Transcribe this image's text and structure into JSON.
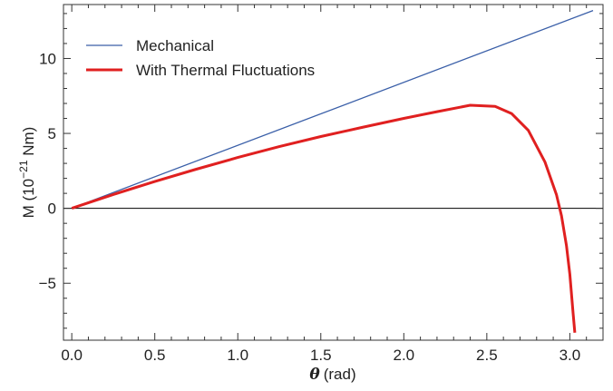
{
  "chart_data": {
    "type": "line",
    "title": "",
    "xlabel_symbol": "θ",
    "xlabel_unit": "(rad)",
    "ylabel_main": "M (10",
    "ylabel_exp": "−21",
    "ylabel_unit": " Nm)",
    "xlim": [
      -0.05,
      3.2
    ],
    "ylim": [
      -8.8,
      13.6
    ],
    "x_ticks": [
      0.0,
      0.5,
      1.0,
      1.5,
      2.0,
      2.5,
      3.0
    ],
    "x_tick_labels": [
      "0.0",
      "0.5",
      "1.0",
      "1.5",
      "2.0",
      "2.5",
      "3.0"
    ],
    "y_ticks": [
      -5,
      0,
      5,
      10
    ],
    "y_tick_labels": [
      "−5",
      "0",
      "5",
      "10"
    ],
    "grid": false,
    "zero_line": true,
    "legend_position": "top-left",
    "series": [
      {
        "name": "Mechanical",
        "color": "#3a5fa8",
        "x": [
          0.0,
          3.14
        ],
        "y": [
          0.0,
          13.2
        ]
      },
      {
        "name": "With Thermal Fluctuations",
        "color": "#e02020",
        "x": [
          0.0,
          0.25,
          0.5,
          0.75,
          1.0,
          1.25,
          1.5,
          1.75,
          2.0,
          2.2,
          2.4,
          2.55,
          2.65,
          2.75,
          2.85,
          2.92,
          2.95,
          2.98,
          3.0,
          3.02,
          3.03
        ],
        "y": [
          0.0,
          0.92,
          1.79,
          2.61,
          3.39,
          4.12,
          4.79,
          5.4,
          6.0,
          6.45,
          6.88,
          6.8,
          6.32,
          5.2,
          3.1,
          0.9,
          -0.5,
          -2.5,
          -4.4,
          -7.0,
          -8.3
        ]
      }
    ]
  }
}
